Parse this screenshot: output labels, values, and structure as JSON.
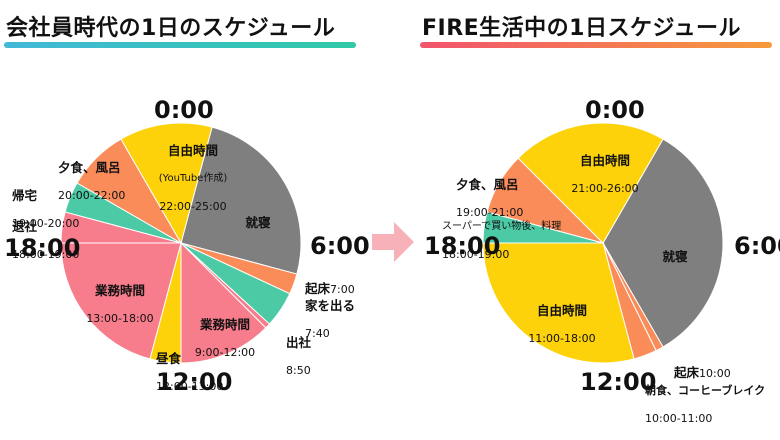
{
  "titles": {
    "left": "会社員時代の1日のスケジュール",
    "right": "FIRE生活中の1日スケジュール"
  },
  "hours": {
    "h0": "0:00",
    "h6": "6:00",
    "h12": "12:00",
    "h18": "18:00"
  },
  "colors": {
    "sleep": "#7f7f7f",
    "free": "#fdd20a",
    "meal": "#fa8c5a",
    "work": "#f77d8c",
    "commute": "#4cc9a5",
    "arrow": "#f7b2b9"
  },
  "chart_data": [
    {
      "type": "pie",
      "title": "会社員時代の1日のスケジュール",
      "unit": "hours",
      "segments": [
        {
          "name": "就寝",
          "start": 1.0,
          "end": 7.0,
          "color_key": "sleep"
        },
        {
          "name": "起床",
          "time": "7:00",
          "start": 7.0,
          "end": 7.667,
          "color_key": "meal"
        },
        {
          "name": "家を出る",
          "time": "7:40",
          "start": 7.667,
          "end": 8.833,
          "color_key": "commute"
        },
        {
          "name": "出社",
          "time": "8:50",
          "start": 8.833,
          "end": 9.0,
          "color_key": "work"
        },
        {
          "name": "業務時間",
          "time": "9:00-12:00",
          "start": 9.0,
          "end": 12.0,
          "color_key": "work"
        },
        {
          "name": "昼食",
          "time": "12:00-13:00",
          "start": 12.0,
          "end": 13.0,
          "color_key": "free"
        },
        {
          "name": "業務時間",
          "time": "13:00-18:00",
          "start": 13.0,
          "end": 18.0,
          "color_key": "work"
        },
        {
          "name": "退社",
          "time": "18:00-19:00",
          "start": 18.0,
          "end": 19.0,
          "color_key": "work"
        },
        {
          "name": "帰宅",
          "time": "19:00-20:00",
          "start": 19.0,
          "end": 20.0,
          "color_key": "commute"
        },
        {
          "name": "夕食、風呂",
          "time": "20:00-22:00",
          "start": 20.0,
          "end": 22.0,
          "color_key": "meal"
        },
        {
          "name": "自由時間",
          "note": "(YouTube作成)",
          "time": "22:00-25:00",
          "start": 22.0,
          "end": 25.0,
          "color_key": "free"
        }
      ]
    },
    {
      "type": "pie",
      "title": "FIRE生活中の1日スケジュール",
      "unit": "hours",
      "segments": [
        {
          "name": "就寝",
          "start": 2.0,
          "end": 10.0,
          "color_key": "sleep"
        },
        {
          "name": "起床",
          "time": "10:00",
          "start": 10.0,
          "end": 10.25,
          "color_key": "meal"
        },
        {
          "name": "朝食、コーヒーブレイク",
          "time": "10:00-11:00",
          "start": 10.25,
          "end": 11.0,
          "color_key": "meal"
        },
        {
          "name": "自由時間",
          "time": "11:00-18:00",
          "start": 11.0,
          "end": 18.0,
          "color_key": "free"
        },
        {
          "name": "スーパーで買い物後、料理",
          "time": "18:00-19:00",
          "start": 18.0,
          "end": 19.0,
          "color_key": "commute"
        },
        {
          "name": "夕食、風呂",
          "time": "19:00-21:00",
          "start": 19.0,
          "end": 21.0,
          "color_key": "meal"
        },
        {
          "name": "自由時間",
          "time": "21:00-26:00",
          "start": 21.0,
          "end": 26.0,
          "color_key": "free"
        }
      ]
    }
  ]
}
